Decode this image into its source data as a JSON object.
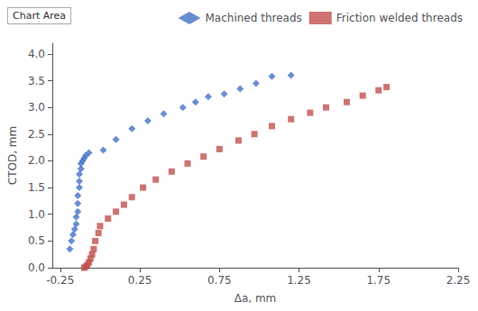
{
  "chart_data": {
    "type": "scatter",
    "xlabel": "Δa, mm",
    "ylabel": "CTOD, mm",
    "annotations": [
      "Chart Area"
    ],
    "xlim": [
      -0.3,
      2.25
    ],
    "ylim": [
      0.0,
      4.2
    ],
    "xticks": [
      -0.25,
      0.25,
      0.75,
      1.25,
      1.75,
      2.25
    ],
    "yticks": [
      {
        "value": 0.0,
        "label": "0.0"
      },
      0.5,
      {
        "value": 1.0,
        "label": "1.0"
      },
      1.5,
      {
        "value": 2.0,
        "label": "2.0"
      },
      2.5,
      {
        "value": 3.0,
        "label": "3.0"
      },
      3.5,
      {
        "value": 4.0,
        "label": "4.0"
      }
    ],
    "grid": false,
    "legend": "upper right",
    "series": [
      {
        "name": "Machined threads",
        "color": "#4472C4",
        "marker": "diamond",
        "x": [
          -0.19,
          -0.18,
          -0.17,
          -0.16,
          -0.15,
          -0.15,
          -0.14,
          -0.14,
          -0.14,
          -0.13,
          -0.13,
          -0.13,
          -0.12,
          -0.12,
          -0.11,
          -0.1,
          -0.09,
          -0.07,
          0.02,
          0.1,
          0.2,
          0.3,
          0.4,
          0.52,
          0.6,
          0.68,
          0.78,
          0.88,
          0.98,
          1.08,
          1.2
        ],
        "values": [
          0.35,
          0.5,
          0.62,
          0.72,
          0.82,
          0.95,
          1.05,
          1.2,
          1.35,
          1.5,
          1.62,
          1.75,
          1.85,
          1.95,
          2.0,
          2.05,
          2.1,
          2.15,
          2.2,
          2.4,
          2.6,
          2.75,
          2.88,
          3.0,
          3.1,
          3.2,
          3.25,
          3.35,
          3.45,
          3.58,
          3.6
        ]
      },
      {
        "name": "Friction welded threads",
        "color": "#C0504D",
        "marker": "square",
        "x": [
          -0.1,
          -0.09,
          -0.08,
          -0.07,
          -0.06,
          -0.05,
          -0.04,
          -0.03,
          -0.01,
          0.0,
          0.05,
          0.1,
          0.15,
          0.2,
          0.27,
          0.35,
          0.45,
          0.55,
          0.65,
          0.75,
          0.87,
          0.97,
          1.08,
          1.2,
          1.32,
          1.42,
          1.55,
          1.65,
          1.75,
          1.8
        ],
        "values": [
          0.0,
          0.02,
          0.05,
          0.1,
          0.17,
          0.25,
          0.35,
          0.5,
          0.65,
          0.78,
          0.92,
          1.05,
          1.18,
          1.32,
          1.5,
          1.65,
          1.8,
          1.95,
          2.08,
          2.22,
          2.38,
          2.5,
          2.65,
          2.78,
          2.9,
          3.0,
          3.1,
          3.22,
          3.32,
          3.38
        ]
      }
    ]
  }
}
